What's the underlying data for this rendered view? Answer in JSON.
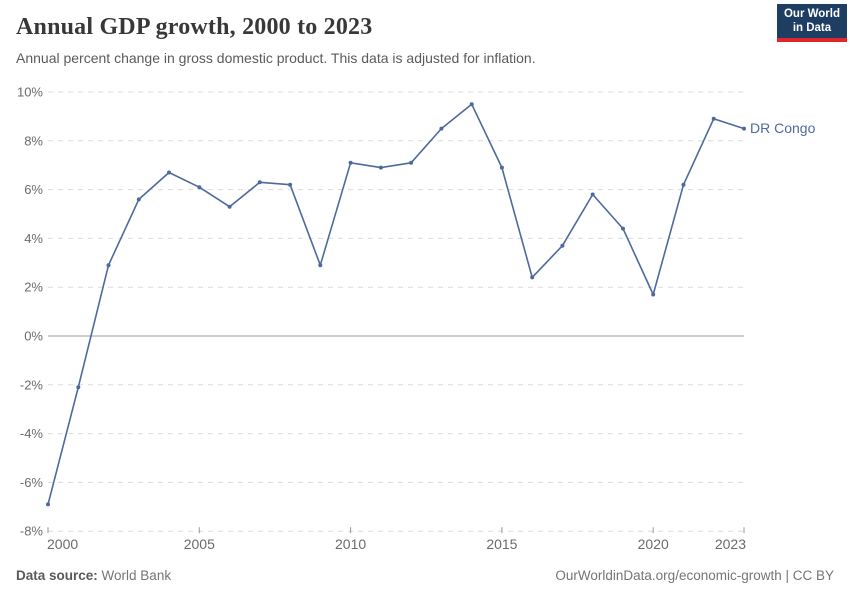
{
  "header": {
    "title": "Annual GDP growth, 2000 to 2023",
    "subtitle": "Annual percent change in gross domestic product. This data is adjusted for inflation.",
    "logo": {
      "line1": "Our World",
      "line2": "in Data",
      "bg_color": "#1d3d63",
      "accent_color": "#e0262c"
    }
  },
  "chart_data": {
    "type": "line",
    "title": "Annual GDP growth, 2000 to 2023",
    "x": [
      2000,
      2001,
      2002,
      2003,
      2004,
      2005,
      2006,
      2007,
      2008,
      2009,
      2010,
      2011,
      2012,
      2013,
      2014,
      2015,
      2016,
      2017,
      2018,
      2019,
      2020,
      2021,
      2022,
      2023
    ],
    "series": [
      {
        "name": "DR Congo",
        "color": "#4c6a9c",
        "values": [
          -6.9,
          -2.1,
          2.9,
          5.6,
          6.7,
          6.1,
          5.3,
          6.3,
          6.2,
          2.9,
          7.1,
          6.9,
          7.1,
          8.5,
          9.5,
          6.9,
          2.4,
          3.7,
          5.8,
          4.4,
          1.7,
          6.2,
          8.9,
          8.5
        ]
      }
    ],
    "xlabel": "",
    "ylabel": "",
    "ylim": [
      -8,
      10
    ],
    "yticks": [
      10,
      8,
      6,
      4,
      2,
      0,
      -2,
      -4,
      -6,
      -8
    ],
    "ytick_suffix": "%",
    "xticks": [
      2000,
      2005,
      2010,
      2015,
      2020,
      2023
    ],
    "grid": "horizontal-dashed",
    "grid_color": "#dcdcdc",
    "zero_line_color": "#999999",
    "axis_text_color": "#6b6b6b",
    "legend_position": "end-of-line",
    "end_label": "DR Congo"
  },
  "footer": {
    "source_label": "Data source:",
    "source_value": "World Bank",
    "credit": "OurWorldinData.org/economic-growth | CC BY"
  }
}
